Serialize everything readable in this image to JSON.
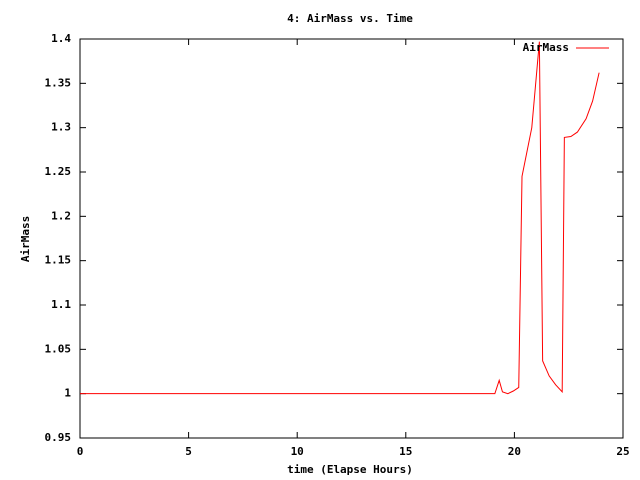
{
  "chart_data": {
    "type": "line",
    "title": "4: AirMass vs. Time",
    "x_label": "time (Elapse Hours)",
    "y_label": "AirMass",
    "xlim": [
      0,
      25
    ],
    "xticks": [
      0,
      5,
      10,
      15,
      20,
      25
    ],
    "ylim": [
      0.95,
      1.4
    ],
    "yticks": [
      0.95,
      1,
      1.05,
      1.1,
      1.15,
      1.2,
      1.25,
      1.3,
      1.35,
      1.4
    ],
    "legend": "top-right",
    "series": [
      {
        "name": "AirMass",
        "color": "#ff0000",
        "x": [
          0,
          19.1,
          19.3,
          19.45,
          19.7,
          19.95,
          20.2,
          20.35,
          20.8,
          21.15,
          21.3,
          21.6,
          21.9,
          22.2,
          22.3,
          22.6,
          22.9,
          23.3,
          23.6,
          23.9
        ],
        "values": [
          1.0,
          1.0,
          1.015,
          1.002,
          1.0,
          1.003,
          1.007,
          1.245,
          1.3,
          1.397,
          1.037,
          1.02,
          1.01,
          1.002,
          1.289,
          1.29,
          1.295,
          1.31,
          1.33,
          1.362
        ]
      }
    ]
  }
}
